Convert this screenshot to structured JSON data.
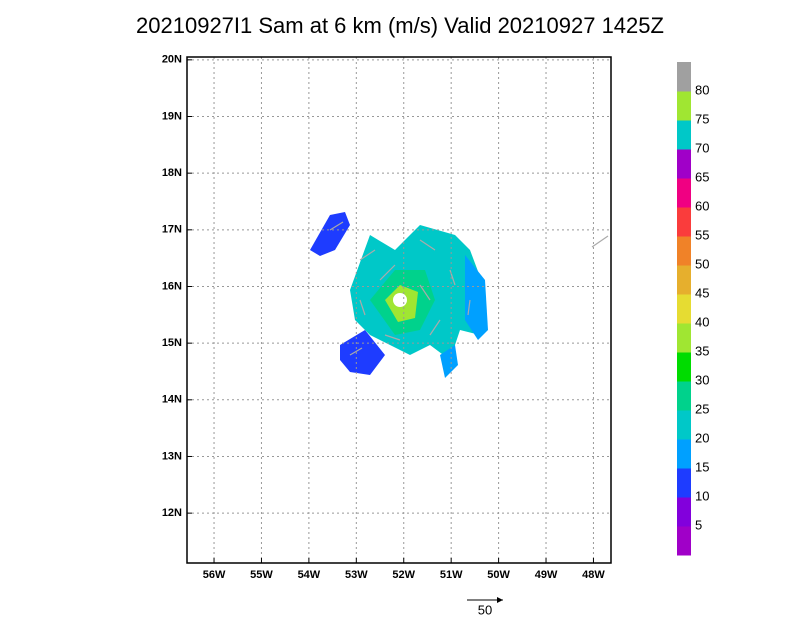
{
  "map": {
    "title": "20210927I1 Sam at 6 km (m/s) Valid 20210927 1425Z",
    "xlim": [
      -56.57,
      -47.63
    ],
    "ylim": [
      11.12,
      20.05
    ],
    "xticks": [
      {
        "value": -56,
        "label": "56W"
      },
      {
        "value": -55,
        "label": "55W"
      },
      {
        "value": -54,
        "label": "54W"
      },
      {
        "value": -53,
        "label": "53W"
      },
      {
        "value": -52,
        "label": "52W"
      },
      {
        "value": -51,
        "label": "51W"
      },
      {
        "value": -50,
        "label": "50W"
      },
      {
        "value": -49,
        "label": "49W"
      },
      {
        "value": -48,
        "label": "48W"
      }
    ],
    "yticks": [
      {
        "value": 12,
        "label": "12N"
      },
      {
        "value": 13,
        "label": "13N"
      },
      {
        "value": 14,
        "label": "14N"
      },
      {
        "value": 15,
        "label": "15N"
      },
      {
        "value": 16,
        "label": "16N"
      },
      {
        "value": 17,
        "label": "17N"
      },
      {
        "value": 18,
        "label": "18N"
      },
      {
        "value": 19,
        "label": "19N"
      },
      {
        "value": 20,
        "label": "20N"
      }
    ],
    "grid": true,
    "colorbar": {
      "levels": [
        5,
        10,
        15,
        20,
        25,
        30,
        35,
        40,
        45,
        50,
        55,
        60,
        65,
        70,
        75,
        80
      ],
      "colors": [
        "#a000c8",
        "#8200dc",
        "#1e3cff",
        "#00a0ff",
        "#00c8c8",
        "#00d28c",
        "#00dc00",
        "#a0e632",
        "#e6dc32",
        "#e6af2d",
        "#f08228",
        "#fa3c3c",
        "#f00082",
        "#a000c8",
        "#00c8c8",
        "#a0e632",
        "#a0a0a0"
      ]
    },
    "reference_vector": 50
  }
}
